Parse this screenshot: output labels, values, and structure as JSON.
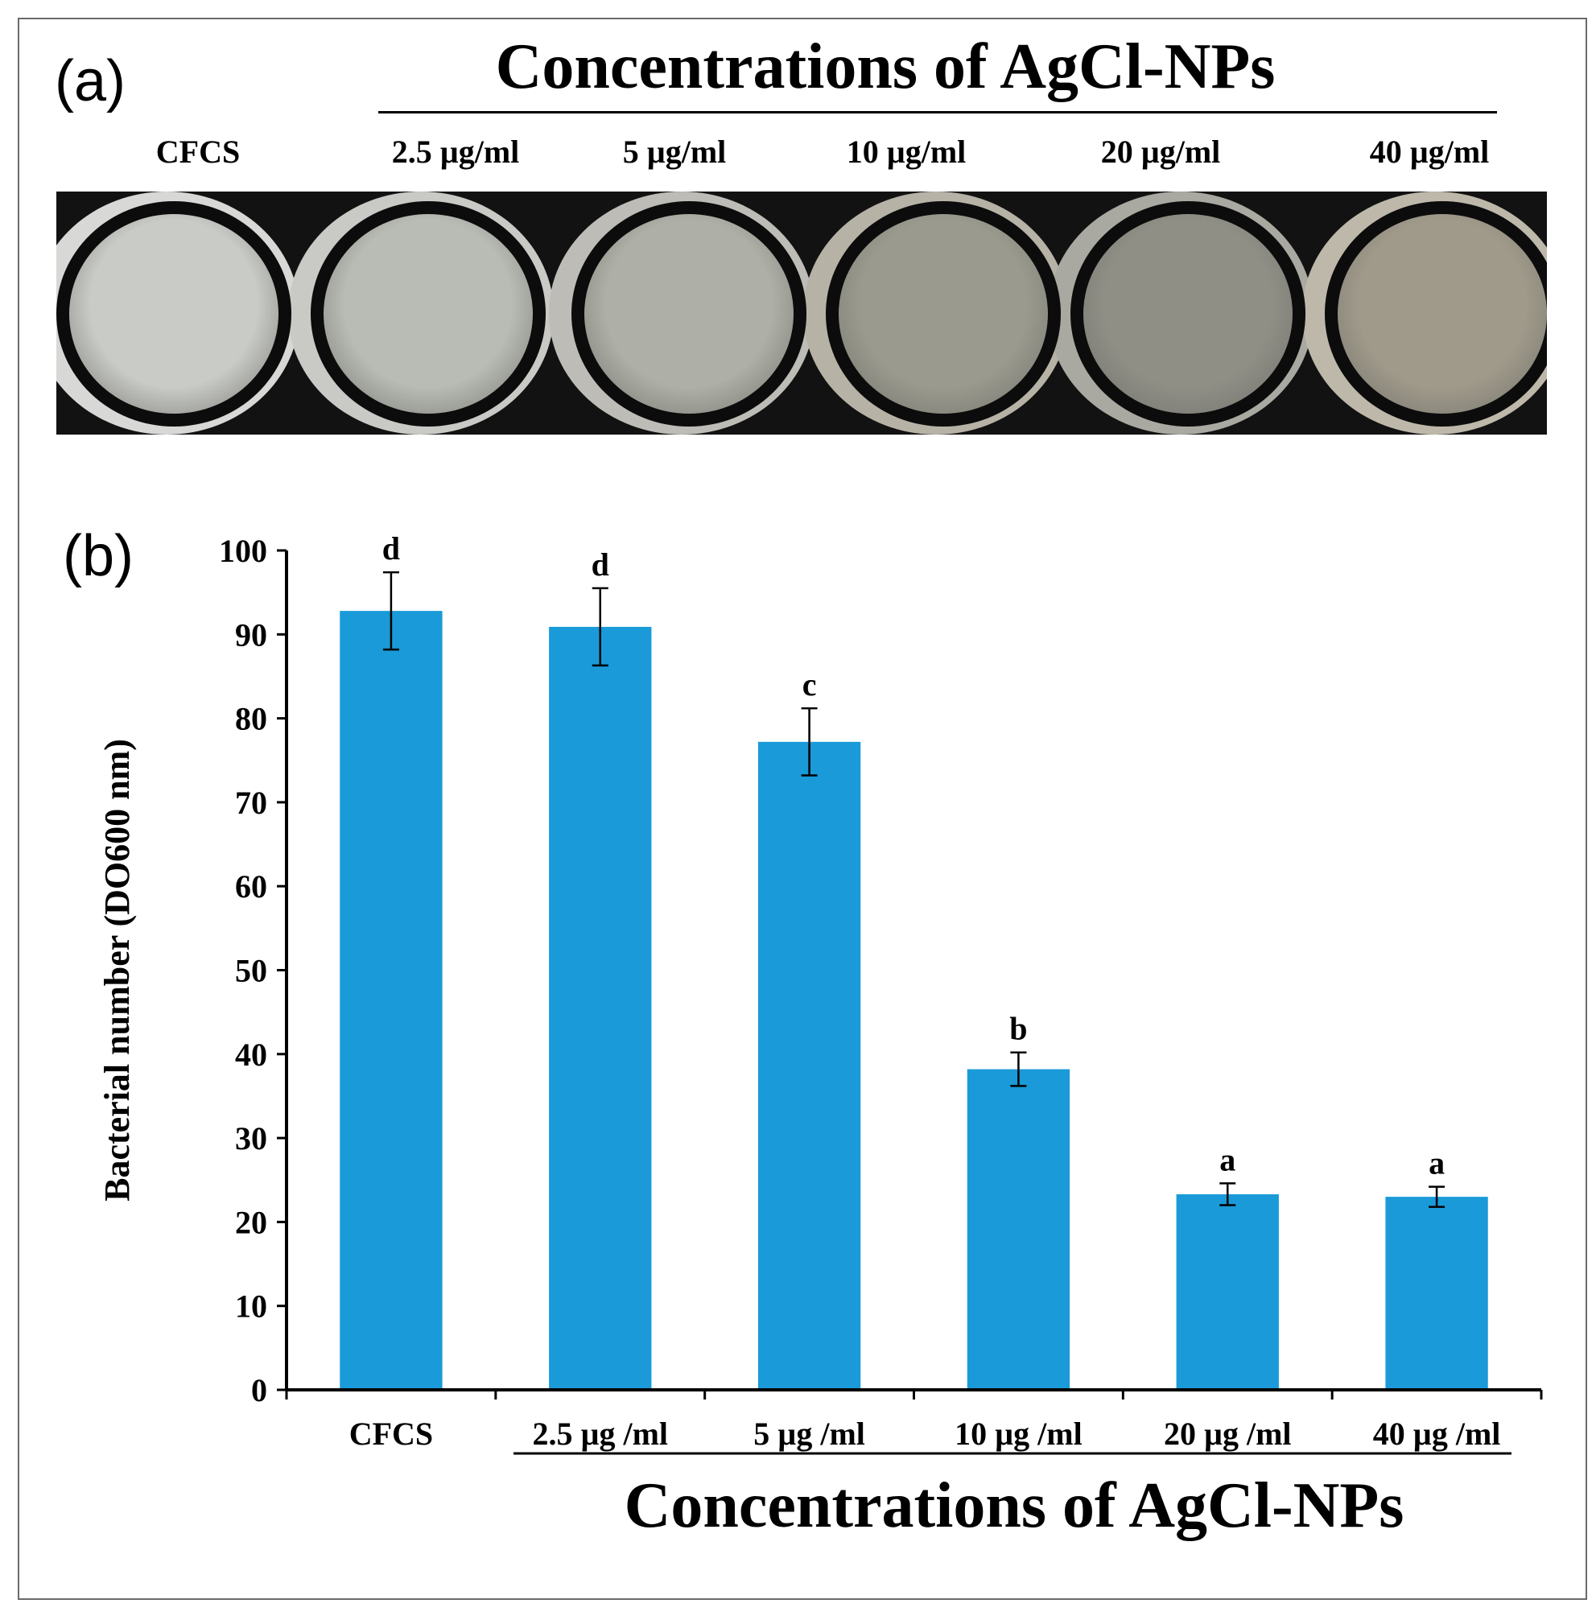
{
  "panel_a": {
    "label": "(a)",
    "title": "Concentrations of AgCl-NPs",
    "well_labels": [
      "CFCS",
      "2.5 µg/ml",
      "5 µg/ml",
      "10 µg/ml",
      "20 µg/ml",
      "40 µg/ml"
    ],
    "well_colors": [
      "#c9cbc6",
      "#b9bcb5",
      "#aeafa6",
      "#9b9a8e",
      "#8f8f86",
      "#a09a8a"
    ]
  },
  "panel_b": {
    "label": "(b)"
  },
  "chart_data": {
    "type": "bar",
    "categories": [
      "CFCS",
      "2.5 µg /ml",
      "5 µg /ml",
      "10 µg /ml",
      "20 µg /ml",
      "40 µg /ml"
    ],
    "values": [
      92.8,
      90.9,
      77.2,
      38.2,
      23.3,
      23.0
    ],
    "errors": [
      4.6,
      4.6,
      4.0,
      2.0,
      1.3,
      1.2
    ],
    "significance_letters": [
      "d",
      "d",
      "c",
      "b",
      "a",
      "a"
    ],
    "title": "",
    "xlabel": "Concentrations of AgCl-NPs",
    "ylabel": "Bacterial number (DO600 nm)",
    "ylim": [
      0,
      100
    ],
    "yticks": [
      0,
      10,
      20,
      30,
      40,
      50,
      60,
      70,
      80,
      90,
      100
    ],
    "bar_color": "#1a9ad8",
    "grid": false
  }
}
